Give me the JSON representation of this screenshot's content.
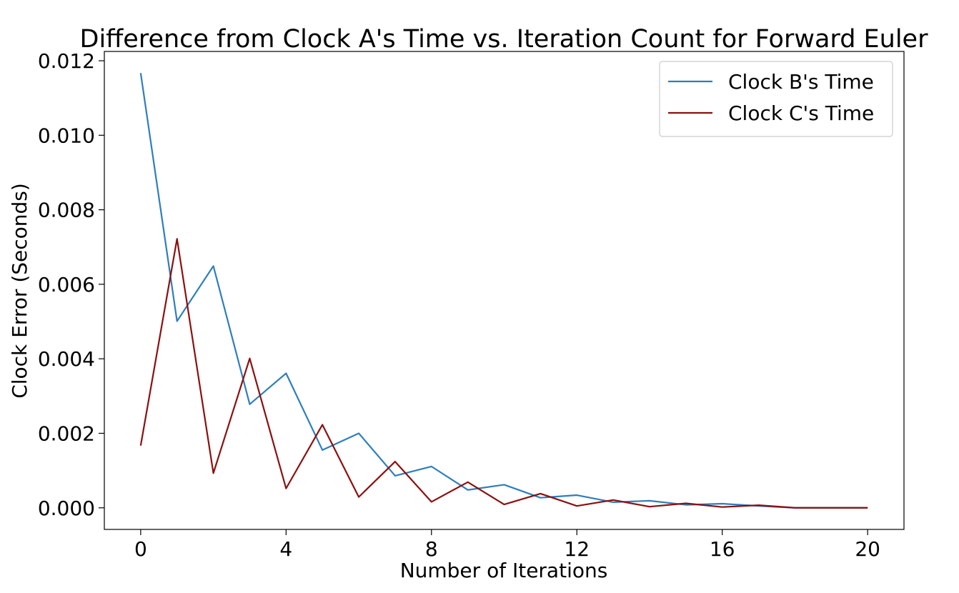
{
  "chart_data": {
    "type": "line",
    "title": "Difference from Clock A's Time vs. Iteration Count for Forward Euler",
    "xlabel": "Number of Iterations",
    "ylabel": "Clock Error (Seconds)",
    "xlim": [
      -1,
      21
    ],
    "ylim": [
      -0.00058,
      0.01225
    ],
    "x_ticks": [
      0,
      4,
      8,
      12,
      16,
      20
    ],
    "x_tick_labels": [
      "0",
      "4",
      "8",
      "12",
      "16",
      "20"
    ],
    "y_ticks": [
      0,
      0.002,
      0.004,
      0.006,
      0.008,
      0.01,
      0.012
    ],
    "y_tick_labels": [
      "0.000",
      "0.002",
      "0.004",
      "0.006",
      "0.008",
      "0.010",
      "0.012"
    ],
    "grid": false,
    "legend_position": "top-right",
    "x": [
      0,
      1,
      2,
      3,
      4,
      5,
      6,
      7,
      8,
      9,
      10,
      11,
      12,
      13,
      14,
      15,
      16,
      17,
      18,
      19,
      20
    ],
    "series": [
      {
        "name": "Clock B's Time",
        "color": "#2e7ebc",
        "values": [
          0.01167,
          0.00501,
          0.00649,
          0.00278,
          0.00361,
          0.00155,
          0.002,
          0.00086,
          0.00111,
          0.00048,
          0.00062,
          0.00027,
          0.00034,
          0.00015,
          0.00019,
          8e-05,
          0.00011,
          5e-05,
          0.0,
          0.0,
          0.0
        ]
      },
      {
        "name": "Clock C's Time",
        "color": "#8b1010",
        "values": [
          0.00167,
          0.00722,
          0.00093,
          0.00401,
          0.00052,
          0.00223,
          0.00029,
          0.00124,
          0.00016,
          0.00069,
          9e-05,
          0.00038,
          5e-05,
          0.00021,
          3e-05,
          0.00012,
          2e-05,
          7e-05,
          0.0,
          0.0,
          0.0
        ]
      }
    ]
  }
}
